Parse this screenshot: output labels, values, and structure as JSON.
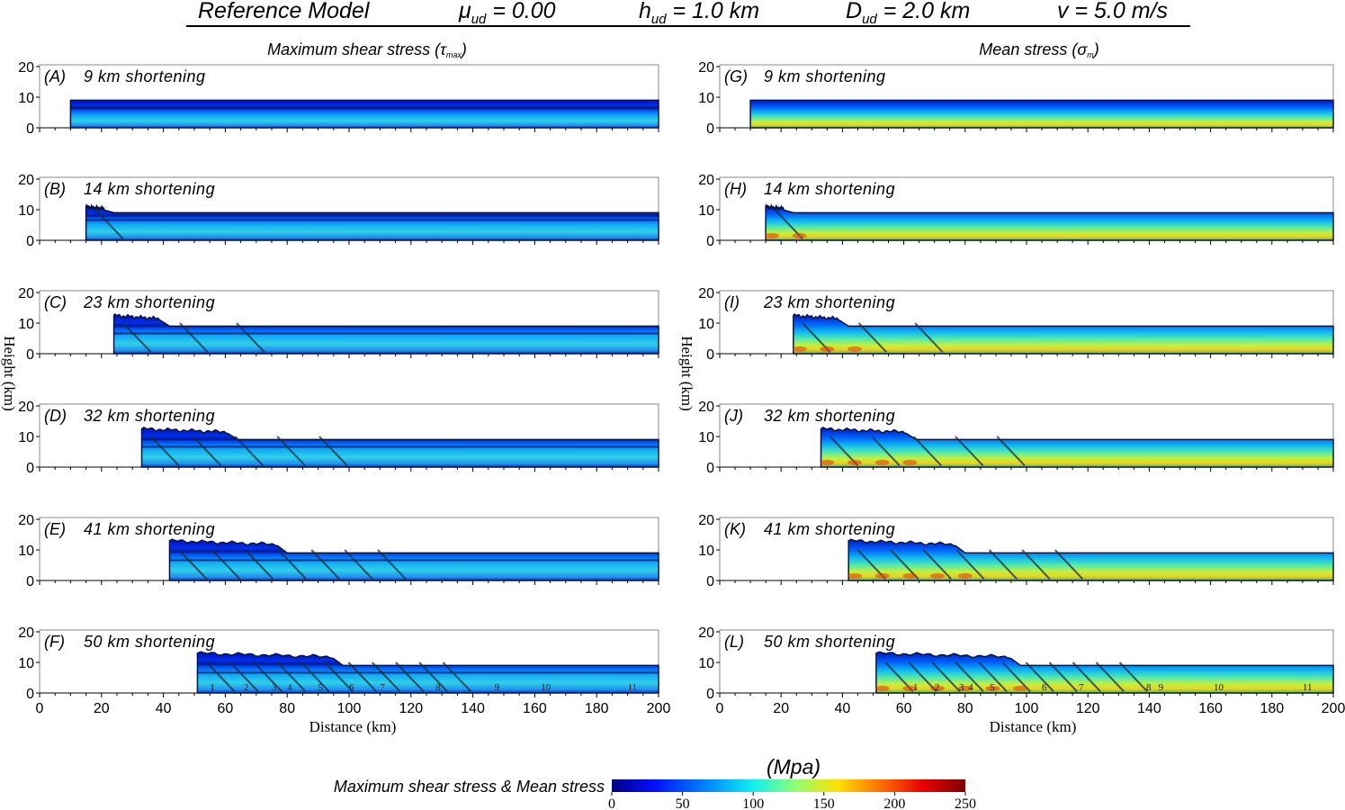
{
  "header": {
    "title": "Reference  Model",
    "mu": {
      "sym": "μ",
      "sub": "ud",
      "rest": " = 0.00"
    },
    "h": {
      "sym": "h",
      "sub": "ud",
      "rest": " = 1.0 km"
    },
    "D": {
      "sym": "D",
      "sub": "ud",
      "rest": " = 2.0 km"
    },
    "v": {
      "sym": "v",
      "rest": " = 5.0 m/s"
    }
  },
  "columns": [
    {
      "title": "Maximum shear stress",
      "symbol": "τ",
      "symbol_sub": "max",
      "panels": [
        {
          "letter": "(A)",
          "label": "9 km shortening"
        },
        {
          "letter": "(B)",
          "label": "14 km shortening"
        },
        {
          "letter": "(C)",
          "label": "23 km shortening"
        },
        {
          "letter": "(D)",
          "label": "32 km shortening"
        },
        {
          "letter": "(E)",
          "label": "41 km shortening"
        },
        {
          "letter": "(F)",
          "label": "50 km shortening"
        }
      ]
    },
    {
      "title": "Mean stress",
      "symbol": "σ",
      "symbol_sub": "m",
      "panels": [
        {
          "letter": "(G)",
          "label": "9 km shortening"
        },
        {
          "letter": "(H)",
          "label": "14 km shortening"
        },
        {
          "letter": "(I)",
          "label": "23 km shortening"
        },
        {
          "letter": "(J)",
          "label": "32 km shortening"
        },
        {
          "letter": "(K)",
          "label": "41 km shortening"
        },
        {
          "letter": "(L)",
          "label": "50 km shortening"
        }
      ]
    }
  ],
  "axes": {
    "ylabel": "Height (km)",
    "xlabel": "Distance (km)",
    "y_ticks": [
      "0",
      "10",
      "20"
    ],
    "x_ticks": [
      "0",
      "20",
      "40",
      "60",
      "80",
      "100",
      "120",
      "140",
      "160",
      "180",
      "200"
    ]
  },
  "fault_numbers": [
    "1",
    "2",
    "3",
    "4",
    "5",
    "6",
    "7",
    "8",
    "9",
    "10",
    "11"
  ],
  "colorbar": {
    "label": "Maximum shear stress & Mean stress",
    "unit": "(Mpa)",
    "ticks": [
      "0",
      "50",
      "100",
      "150",
      "200",
      "250"
    ],
    "colors": [
      "#00007f",
      "#0010ff",
      "#0090ff",
      "#10f0f0",
      "#90ff70",
      "#ffe000",
      "#ff7000",
      "#e80000",
      "#7f0000"
    ]
  },
  "chart_data": {
    "type": "heatmap",
    "xlim": [
      0,
      200
    ],
    "ylim": [
      0,
      20
    ],
    "shortening_km": [
      9,
      14,
      23,
      32,
      41,
      50
    ],
    "deformation_front_km": [
      10,
      15,
      24,
      33,
      42,
      51
    ],
    "wedge_max_height_km": [
      9,
      11,
      12.5,
      12.5,
      13,
      13
    ],
    "undeformed_height_km": 9,
    "colorscale_range_mpa": [
      0,
      250
    ]
  }
}
